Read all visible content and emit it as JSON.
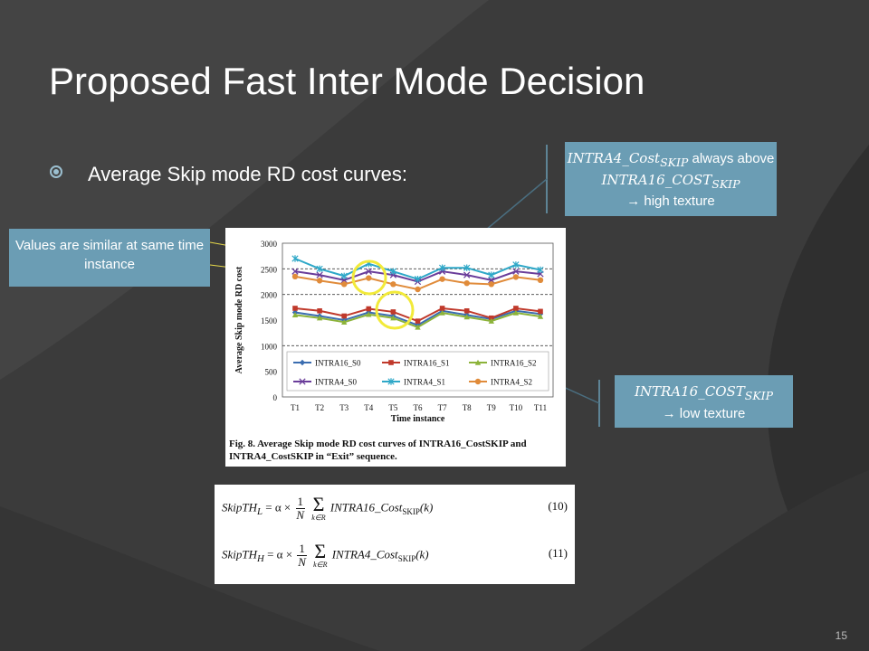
{
  "slide": {
    "title": "Proposed Fast Inter Mode Decision",
    "bullet": "Average Skip mode RD cost curves:",
    "page_number": "15"
  },
  "callouts": {
    "left": {
      "text": "Values are similar at same time instance"
    },
    "top": {
      "math1": "INTRA4_Cost",
      "sub1": "SKIP",
      "text1": " always above ",
      "math2": "INTRA16_COST",
      "sub2": "SKIP",
      "text2": "→ high texture"
    },
    "bottom": {
      "math1": "INTRA16_COST",
      "sub1": "SKIP",
      "text1": "→ low texture"
    }
  },
  "figure": {
    "caption": "Fig.  8. Average Skip mode RD cost curves of INTRA16_CostSKIP and INTRA4_CostSKIP in “Exit” sequence."
  },
  "equations": [
    {
      "lhs": "SkipTH",
      "lhs_sub": "L",
      "num": "1",
      "den": "N",
      "sum_sub": "k∈R",
      "body": "INTRA16_Cost",
      "body_sub": "SKIP",
      "arg": "(k)",
      "number": "(10)"
    },
    {
      "lhs": "SkipTH",
      "lhs_sub": "H",
      "num": "1",
      "den": "N",
      "sum_sub": "k∈R",
      "body": "INTRA4_Cost",
      "body_sub": "SKIP",
      "arg": "(k)",
      "number": "(11)"
    }
  ],
  "chart_data": {
    "type": "line",
    "categories": [
      "T1",
      "T2",
      "T3",
      "T4",
      "T5",
      "T6",
      "T7",
      "T8",
      "T9",
      "T10",
      "T11"
    ],
    "xlabel": "Time instance",
    "ylabel": "Average  Skip  mode  RD  cost",
    "ylim": [
      0,
      3000
    ],
    "yticks": [
      0,
      500,
      1000,
      1500,
      2000,
      2500,
      3000
    ],
    "legend": "inside-bottom",
    "series": [
      {
        "name": "INTRA16_S0",
        "color": "#3b6db0",
        "marker": "diamond",
        "values": [
          1650,
          1580,
          1500,
          1650,
          1580,
          1400,
          1680,
          1600,
          1520,
          1680,
          1620
        ]
      },
      {
        "name": "INTRA16_S1",
        "color": "#c0392b",
        "marker": "square",
        "values": [
          1730,
          1680,
          1580,
          1720,
          1660,
          1480,
          1730,
          1680,
          1540,
          1730,
          1670
        ]
      },
      {
        "name": "INTRA16_S2",
        "color": "#8cb33a",
        "marker": "triangle",
        "values": [
          1600,
          1540,
          1460,
          1610,
          1540,
          1360,
          1640,
          1560,
          1480,
          1640,
          1570
        ]
      },
      {
        "name": "INTRA4_S0",
        "color": "#6a3d9a",
        "marker": "x",
        "values": [
          2450,
          2380,
          2280,
          2450,
          2380,
          2250,
          2450,
          2380,
          2280,
          2450,
          2400
        ]
      },
      {
        "name": "INTRA4_S1",
        "color": "#2fa8c8",
        "marker": "star",
        "values": [
          2700,
          2500,
          2360,
          2600,
          2450,
          2300,
          2520,
          2520,
          2380,
          2580,
          2480
        ]
      },
      {
        "name": "INTRA4_S2",
        "color": "#e08b3a",
        "marker": "circle",
        "values": [
          2350,
          2270,
          2200,
          2320,
          2200,
          2100,
          2300,
          2220,
          2200,
          2340,
          2280
        ]
      }
    ]
  }
}
